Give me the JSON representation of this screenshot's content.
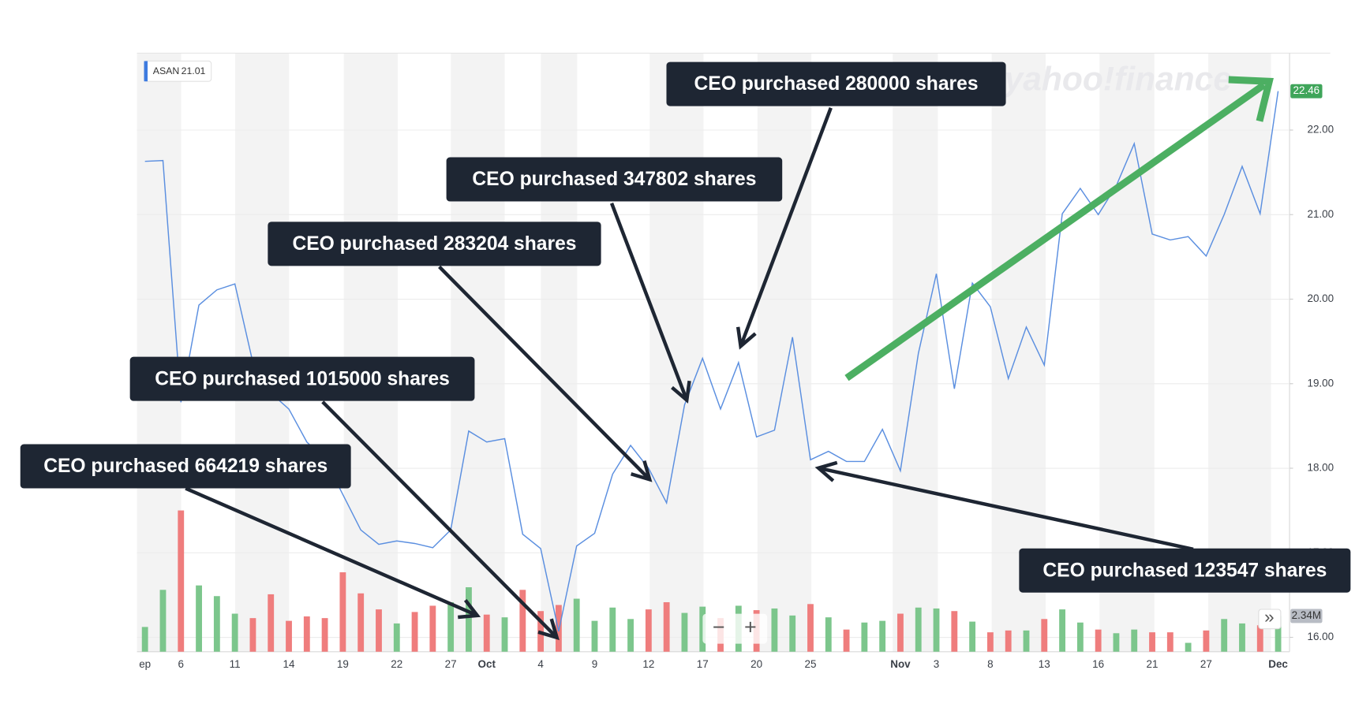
{
  "chart_data": {
    "type": "line",
    "watermark": "yahoo!finance",
    "legend_value": 21.01,
    "categories": [
      "ep",
      null,
      "6",
      null,
      null,
      "11",
      null,
      null,
      "14",
      null,
      null,
      "19",
      null,
      null,
      "22",
      null,
      null,
      "27",
      null,
      "Oct",
      null,
      null,
      "4",
      null,
      null,
      "9",
      null,
      null,
      "12",
      null,
      null,
      "17",
      null,
      null,
      "20",
      null,
      null,
      "25",
      null,
      null,
      null,
      null,
      "Nov",
      null,
      "3",
      null,
      null,
      "8",
      null,
      null,
      "13",
      null,
      null,
      "16",
      null,
      null,
      "21",
      null,
      null,
      "27",
      null,
      null,
      null,
      "Dec"
    ],
    "series": [
      {
        "name": "ASAN",
        "color": "#5b8fe0",
        "values": [
          21.63,
          21.64,
          18.78,
          19.93,
          20.11,
          20.18,
          19.25,
          18.89,
          18.7,
          18.31,
          18.11,
          17.69,
          17.27,
          17.1,
          17.14,
          17.11,
          17.06,
          17.27,
          18.44,
          18.31,
          18.35,
          17.22,
          17.05,
          16.07,
          17.08,
          17.23,
          17.93,
          18.27,
          18.0,
          17.59,
          18.75,
          19.3,
          18.7,
          19.25,
          18.37,
          18.45,
          19.55,
          18.1,
          18.2,
          18.08,
          18.08,
          18.46,
          17.97,
          19.36,
          20.3,
          18.94,
          20.19,
          19.91,
          19.06,
          19.67,
          19.22,
          21.01,
          21.31,
          21.0,
          21.34,
          21.84,
          20.77,
          20.7,
          20.74,
          20.51,
          21.0,
          21.57,
          21.01,
          22.46
        ],
        "value_labels": [
          null,
          null,
          null,
          null,
          null,
          null,
          null,
          null,
          null,
          null,
          null,
          null,
          null,
          null,
          null,
          null,
          null,
          null,
          null,
          null,
          null,
          null,
          null,
          null,
          null,
          null,
          null,
          null,
          null,
          null,
          null,
          null,
          null,
          null,
          null,
          null,
          null,
          null,
          null,
          null,
          null,
          null,
          null,
          null,
          null,
          null,
          null,
          null,
          null,
          null,
          null,
          null,
          null,
          null,
          null,
          null,
          null,
          null,
          null,
          null,
          null,
          null,
          null,
          "22.46"
        ],
        "label_color": "#3fa55a"
      },
      {
        "type": "bar",
        "axis": "y2",
        "label_color": "#b8bcc4",
        "values": [
          1.62,
          4.05,
          9.25,
          4.34,
          3.64,
          2.49,
          2.2,
          3.76,
          2.02,
          2.31,
          2.2,
          5.2,
          3.82,
          2.77,
          1.85,
          2.6,
          3.01,
          3.24,
          4.22,
          2.43,
          2.25,
          4.05,
          2.66,
          3.06,
          3.47,
          2.02,
          2.89,
          2.14,
          2.77,
          3.24,
          2.54,
          2.95,
          2.2,
          3.01,
          2.72,
          2.83,
          2.37,
          3.12,
          2.25,
          1.45,
          1.91,
          2.02,
          2.49,
          2.89,
          2.83,
          2.66,
          1.97,
          1.27,
          1.39,
          1.39,
          2.14,
          2.77,
          1.91,
          1.45,
          1.21,
          1.45,
          1.27,
          1.27,
          0.58,
          1.39,
          2.14,
          1.85,
          1.73,
          2.34
        ],
        "value_labels": [
          null,
          null,
          null,
          null,
          null,
          null,
          null,
          null,
          null,
          null,
          null,
          null,
          null,
          null,
          null,
          null,
          null,
          null,
          null,
          null,
          null,
          null,
          null,
          null,
          null,
          null,
          null,
          null,
          null,
          null,
          null,
          null,
          null,
          null,
          null,
          null,
          null,
          null,
          null,
          null,
          null,
          null,
          null,
          null,
          null,
          null,
          null,
          null,
          null,
          null,
          null,
          null,
          null,
          null,
          null,
          null,
          null,
          null,
          null,
          null,
          null,
          null,
          null,
          "2.34M"
        ],
        "colors": [
          "#7cc68c",
          "#7cc68c",
          "#ef7d7d",
          "#7cc68c",
          "#7cc68c",
          "#7cc68c",
          "#ef7d7d",
          "#ef7d7d",
          "#ef7d7d",
          "#ef7d7d",
          "#ef7d7d",
          "#ef7d7d",
          "#ef7d7d",
          "#ef7d7d",
          "#7cc68c",
          "#ef7d7d",
          "#ef7d7d",
          "#7cc68c",
          "#7cc68c",
          "#ef7d7d",
          "#7cc68c",
          "#ef7d7d",
          "#ef7d7d",
          "#ef7d7d",
          "#7cc68c",
          "#7cc68c",
          "#7cc68c",
          "#7cc68c",
          "#ef7d7d",
          "#ef7d7d",
          "#7cc68c",
          "#7cc68c",
          "#ef7d7d",
          "#7cc68c",
          "#ef7d7d",
          "#7cc68c",
          "#7cc68c",
          "#ef7d7d",
          "#7cc68c",
          "#ef7d7d",
          "#7cc68c",
          "#7cc68c",
          "#ef7d7d",
          "#7cc68c",
          "#7cc68c",
          "#ef7d7d",
          "#7cc68c",
          "#ef7d7d",
          "#ef7d7d",
          "#7cc68c",
          "#ef7d7d",
          "#7cc68c",
          "#7cc68c",
          "#ef7d7d",
          "#7cc68c",
          "#7cc68c",
          "#ef7d7d",
          "#ef7d7d",
          "#7cc68c",
          "#ef7d7d",
          "#7cc68c",
          "#7cc68c",
          "#ef7d7d",
          "#7cc68c"
        ]
      }
    ],
    "ylim": [
      15.83,
      22.91
    ],
    "yticks": [
      {
        "value": 16,
        "label": "16.00"
      },
      {
        "value": 17,
        "label": "17.00"
      },
      {
        "value": 18,
        "label": "18.00"
      },
      {
        "value": 19,
        "label": "19.00"
      },
      {
        "value": 20,
        "label": "20.00"
      },
      {
        "value": 21,
        "label": "21.00"
      },
      {
        "value": 22,
        "label": "22.00"
      }
    ],
    "y2lim": [
      0,
      39.2
    ],
    "grid": true,
    "annotations": [
      "CEO purchased 280000 shares",
      "CEO purchased 347802 shares",
      "CEO purchased 283204 shares",
      "CEO purchased 1015000 shares",
      "CEO purchased 664219 shares",
      "CEO purchased 123547 shares"
    ],
    "controls": {
      "zoom_out": "−",
      "zoom_in": "+",
      "more": "»"
    }
  }
}
